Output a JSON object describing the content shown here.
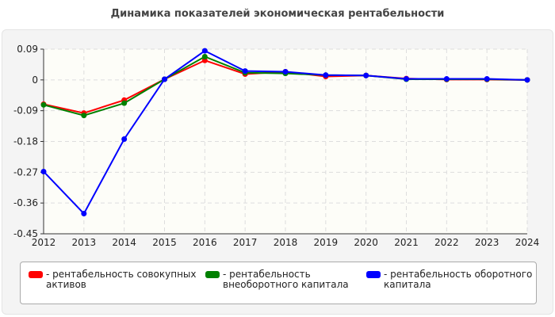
{
  "title": "Динамика показателей экономическая рентабельности",
  "chart_data": {
    "type": "line",
    "title": "Динамика показателей экономическая рентабельности",
    "x": [
      "2012",
      "2013",
      "2014",
      "2015",
      "2016",
      "2017",
      "2018",
      "2019",
      "2020",
      "2021",
      "2022",
      "2023",
      "2024"
    ],
    "yticks": [
      "0.09",
      "0",
      "-0.09",
      "-0.18",
      "-0.27",
      "-0.36",
      "-0.45"
    ],
    "ylim": [
      -0.45,
      0.09
    ],
    "grid": true,
    "legend_position": "bottom",
    "series": [
      {
        "name": "- рентабельность совокупных активов",
        "color": "#ff0000",
        "values": [
          -0.071,
          -0.097,
          -0.059,
          0.002,
          0.057,
          0.017,
          0.024,
          0.01,
          0.013,
          0.004,
          0.001,
          0.001,
          0.0
        ]
      },
      {
        "name": "- рентабельность внеоборотного капитала",
        "color": "#008000",
        "values": [
          -0.073,
          -0.104,
          -0.068,
          0.002,
          0.068,
          0.021,
          0.019,
          0.014,
          0.013,
          0.002,
          0.002,
          0.002,
          0.0
        ]
      },
      {
        "name": "- рентабельность оборотного капитала",
        "color": "#0000ff",
        "values": [
          -0.268,
          -0.391,
          -0.173,
          0.002,
          0.085,
          0.026,
          0.024,
          0.014,
          0.013,
          0.003,
          0.003,
          0.003,
          0.0
        ]
      }
    ]
  },
  "legend": [
    {
      "line1": "- рентабельность совокупных",
      "line2": "активов",
      "color": "#ff0000"
    },
    {
      "line1": "- рентабельность",
      "line2": "внеоборотного капитала",
      "color": "#008000"
    },
    {
      "line1": "- рентабельность оборотного",
      "line2": "капитала",
      "color": "#0000ff"
    }
  ]
}
